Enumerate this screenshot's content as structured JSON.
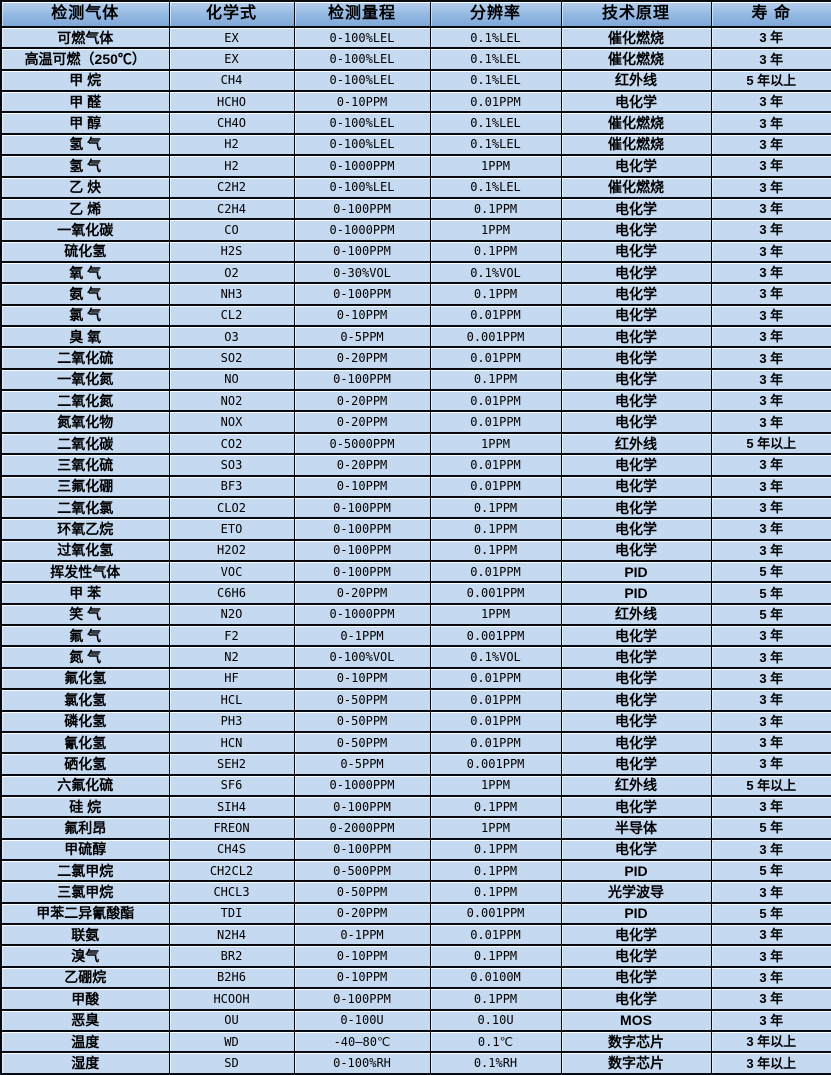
{
  "colors": {
    "header_gradient_top": "#b6d0ee",
    "header_gradient_bottom": "#7fa8d8",
    "row_background": "#c5d9f1",
    "grid_line": "#070a10",
    "gridline_highlight": "#ffffff",
    "text": "#000000"
  },
  "table": {
    "headers": [
      "检测气体",
      "化学式",
      "检测量程",
      "分辨率",
      "技术原理",
      "寿 命"
    ],
    "column_keys": [
      "gas-name",
      "chemical-formula",
      "detection-range",
      "resolution",
      "technology",
      "lifespan"
    ],
    "rows": [
      [
        "可燃气体",
        "EX",
        "0-100%LEL",
        "0.1%LEL",
        "催化燃烧",
        "3 年"
      ],
      [
        "高温可燃（250℃）",
        "EX",
        "0-100%LEL",
        "0.1%LEL",
        "催化燃烧",
        "3 年"
      ],
      [
        "甲 烷",
        "CH4",
        "0-100%LEL",
        "0.1%LEL",
        "红外线",
        "5 年以上"
      ],
      [
        "甲 醛",
        "HCHO",
        "0-10PPM",
        "0.01PPM",
        "电化学",
        "3 年"
      ],
      [
        "甲 醇",
        "CH4O",
        "0-100%LEL",
        "0.1%LEL",
        "催化燃烧",
        "3 年"
      ],
      [
        "氢 气",
        "H2",
        "0-100%LEL",
        "0.1%LEL",
        "催化燃烧",
        "3 年"
      ],
      [
        "氢 气",
        "H2",
        "0-1000PPM",
        "1PPM",
        "电化学",
        "3 年"
      ],
      [
        "乙 炔",
        "C2H2",
        "0-100%LEL",
        "0.1%LEL",
        "催化燃烧",
        "3 年"
      ],
      [
        "乙 烯",
        "C2H4",
        "0-100PPM",
        "0.1PPM",
        "电化学",
        "3 年"
      ],
      [
        "一氧化碳",
        "CO",
        "0-1000PPM",
        "1PPM",
        "电化学",
        "3 年"
      ],
      [
        "硫化氢",
        "H2S",
        "0-100PPM",
        "0.1PPM",
        "电化学",
        "3 年"
      ],
      [
        "氧 气",
        "O2",
        "0-30%VOL",
        "0.1%VOL",
        "电化学",
        "3 年"
      ],
      [
        "氨 气",
        "NH3",
        "0-100PPM",
        "0.1PPM",
        "电化学",
        "3 年"
      ],
      [
        "氯 气",
        "CL2",
        "0-10PPM",
        "0.01PPM",
        "电化学",
        "3 年"
      ],
      [
        "臭 氧",
        "O3",
        "0-5PPM",
        "0.001PPM",
        "电化学",
        "3 年"
      ],
      [
        "二氧化硫",
        "SO2",
        "0-20PPM",
        "0.01PPM",
        "电化学",
        "3 年"
      ],
      [
        "一氧化氮",
        "NO",
        "0-100PPM",
        "0.1PPM",
        "电化学",
        "3 年"
      ],
      [
        "二氧化氮",
        "NO2",
        "0-20PPM",
        "0.01PPM",
        "电化学",
        "3 年"
      ],
      [
        "氮氧化物",
        "NOX",
        "0-20PPM",
        "0.01PPM",
        "电化学",
        "3 年"
      ],
      [
        "二氧化碳",
        "CO2",
        "0-5000PPM",
        "1PPM",
        "红外线",
        "5 年以上"
      ],
      [
        "三氧化硫",
        "SO3",
        "0-20PPM",
        "0.01PPM",
        "电化学",
        "3 年"
      ],
      [
        "三氟化硼",
        "BF3",
        "0-10PPM",
        "0.01PPM",
        "电化学",
        "3 年"
      ],
      [
        "二氧化氯",
        "CLO2",
        "0-100PPM",
        "0.1PPM",
        "电化学",
        "3 年"
      ],
      [
        "环氧乙烷",
        "ETO",
        "0-100PPM",
        "0.1PPM",
        "电化学",
        "3 年"
      ],
      [
        "过氧化氢",
        "H2O2",
        "0-100PPM",
        "0.1PPM",
        "电化学",
        "3 年"
      ],
      [
        "挥发性气体",
        "VOC",
        "0-100PPM",
        "0.01PPM",
        "PID",
        "5 年"
      ],
      [
        "甲 苯",
        "C6H6",
        "0-20PPM",
        "0.001PPM",
        "PID",
        "5 年"
      ],
      [
        "笑 气",
        "N2O",
        "0-1000PPM",
        "1PPM",
        "红外线",
        "5 年"
      ],
      [
        "氟 气",
        "F2",
        "0-1PPM",
        "0.001PPM",
        "电化学",
        "3 年"
      ],
      [
        "氮 气",
        "N2",
        "0-100%VOL",
        "0.1%VOL",
        "电化学",
        "3 年"
      ],
      [
        "氟化氢",
        "HF",
        "0-10PPM",
        "0.01PPM",
        "电化学",
        "3 年"
      ],
      [
        "氯化氢",
        "HCL",
        "0-50PPM",
        "0.01PPM",
        "电化学",
        "3 年"
      ],
      [
        "磷化氢",
        "PH3",
        "0-50PPM",
        "0.01PPM",
        "电化学",
        "3 年"
      ],
      [
        "氰化氢",
        "HCN",
        "0-50PPM",
        "0.01PPM",
        "电化学",
        "3 年"
      ],
      [
        "硒化氢",
        "SEH2",
        "0-5PPM",
        "0.001PPM",
        "电化学",
        "3 年"
      ],
      [
        "六氟化硫",
        "SF6",
        "0-1000PPM",
        "1PPM",
        "红外线",
        "5 年以上"
      ],
      [
        "硅 烷",
        "SIH4",
        "0-100PPM",
        "0.1PPM",
        "电化学",
        "3 年"
      ],
      [
        "氟利昂",
        "FREON",
        "0-2000PPM",
        "1PPM",
        "半导体",
        "5 年"
      ],
      [
        "甲硫醇",
        "CH4S",
        "0-100PPM",
        "0.1PPM",
        "电化学",
        "3 年"
      ],
      [
        "二氯甲烷",
        "CH2CL2",
        "0-500PPM",
        "0.1PPM",
        "PID",
        "5 年"
      ],
      [
        "三氯甲烷",
        "CHCL3",
        "0-50PPM",
        "0.1PPM",
        "光学波导",
        "3 年"
      ],
      [
        "甲苯二异氰酸酯",
        "TDI",
        "0-20PPM",
        "0.001PPM",
        "PID",
        "5 年"
      ],
      [
        "联氨",
        "N2H4",
        "0-1PPM",
        "0.01PPM",
        "电化学",
        "3 年"
      ],
      [
        "溴气",
        "BR2",
        "0-10PPM",
        "0.1PPM",
        "电化学",
        "3 年"
      ],
      [
        "乙硼烷",
        "B2H6",
        "0-10PPM",
        "0.0100M",
        "电化学",
        "3 年"
      ],
      [
        "甲酸",
        "HCOOH",
        "0-100PPM",
        "0.1PPM",
        "电化学",
        "3 年"
      ],
      [
        "恶臭",
        "OU",
        "0-100U",
        "0.10U",
        "MOS",
        "3 年"
      ],
      [
        "温度",
        "WD",
        "-40—80℃",
        "0.1℃",
        "数字芯片",
        "3 年以上"
      ],
      [
        "湿度",
        "SD",
        "0-100%RH",
        "0.1%RH",
        "数字芯片",
        "3 年以上"
      ]
    ]
  }
}
